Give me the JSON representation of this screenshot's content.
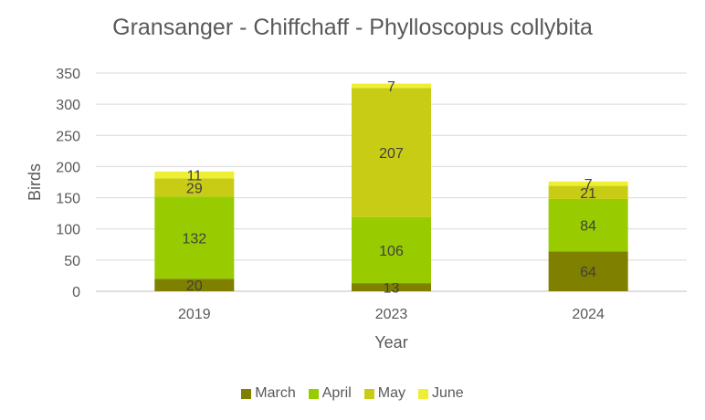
{
  "chart_data": {
    "type": "bar",
    "stacked": true,
    "title": "Gransanger - Chiffchaff - Phylloscopus collybita",
    "xlabel": "Year",
    "ylabel": "Birds",
    "categories": [
      "2019",
      "2023",
      "2024"
    ],
    "ylim": [
      0,
      350
    ],
    "yticks": [
      0,
      50,
      100,
      150,
      200,
      250,
      300,
      350
    ],
    "grid": true,
    "legend_position": "bottom",
    "series": [
      {
        "name": "March",
        "color": "#7f7f00",
        "values": [
          20,
          13,
          64
        ]
      },
      {
        "name": "April",
        "color": "#99cc00",
        "values": [
          132,
          106,
          84
        ]
      },
      {
        "name": "May",
        "color": "#c9cc14",
        "values": [
          29,
          207,
          21
        ]
      },
      {
        "name": "June",
        "color": "#eeee33",
        "values": [
          11,
          7,
          7
        ]
      }
    ]
  }
}
